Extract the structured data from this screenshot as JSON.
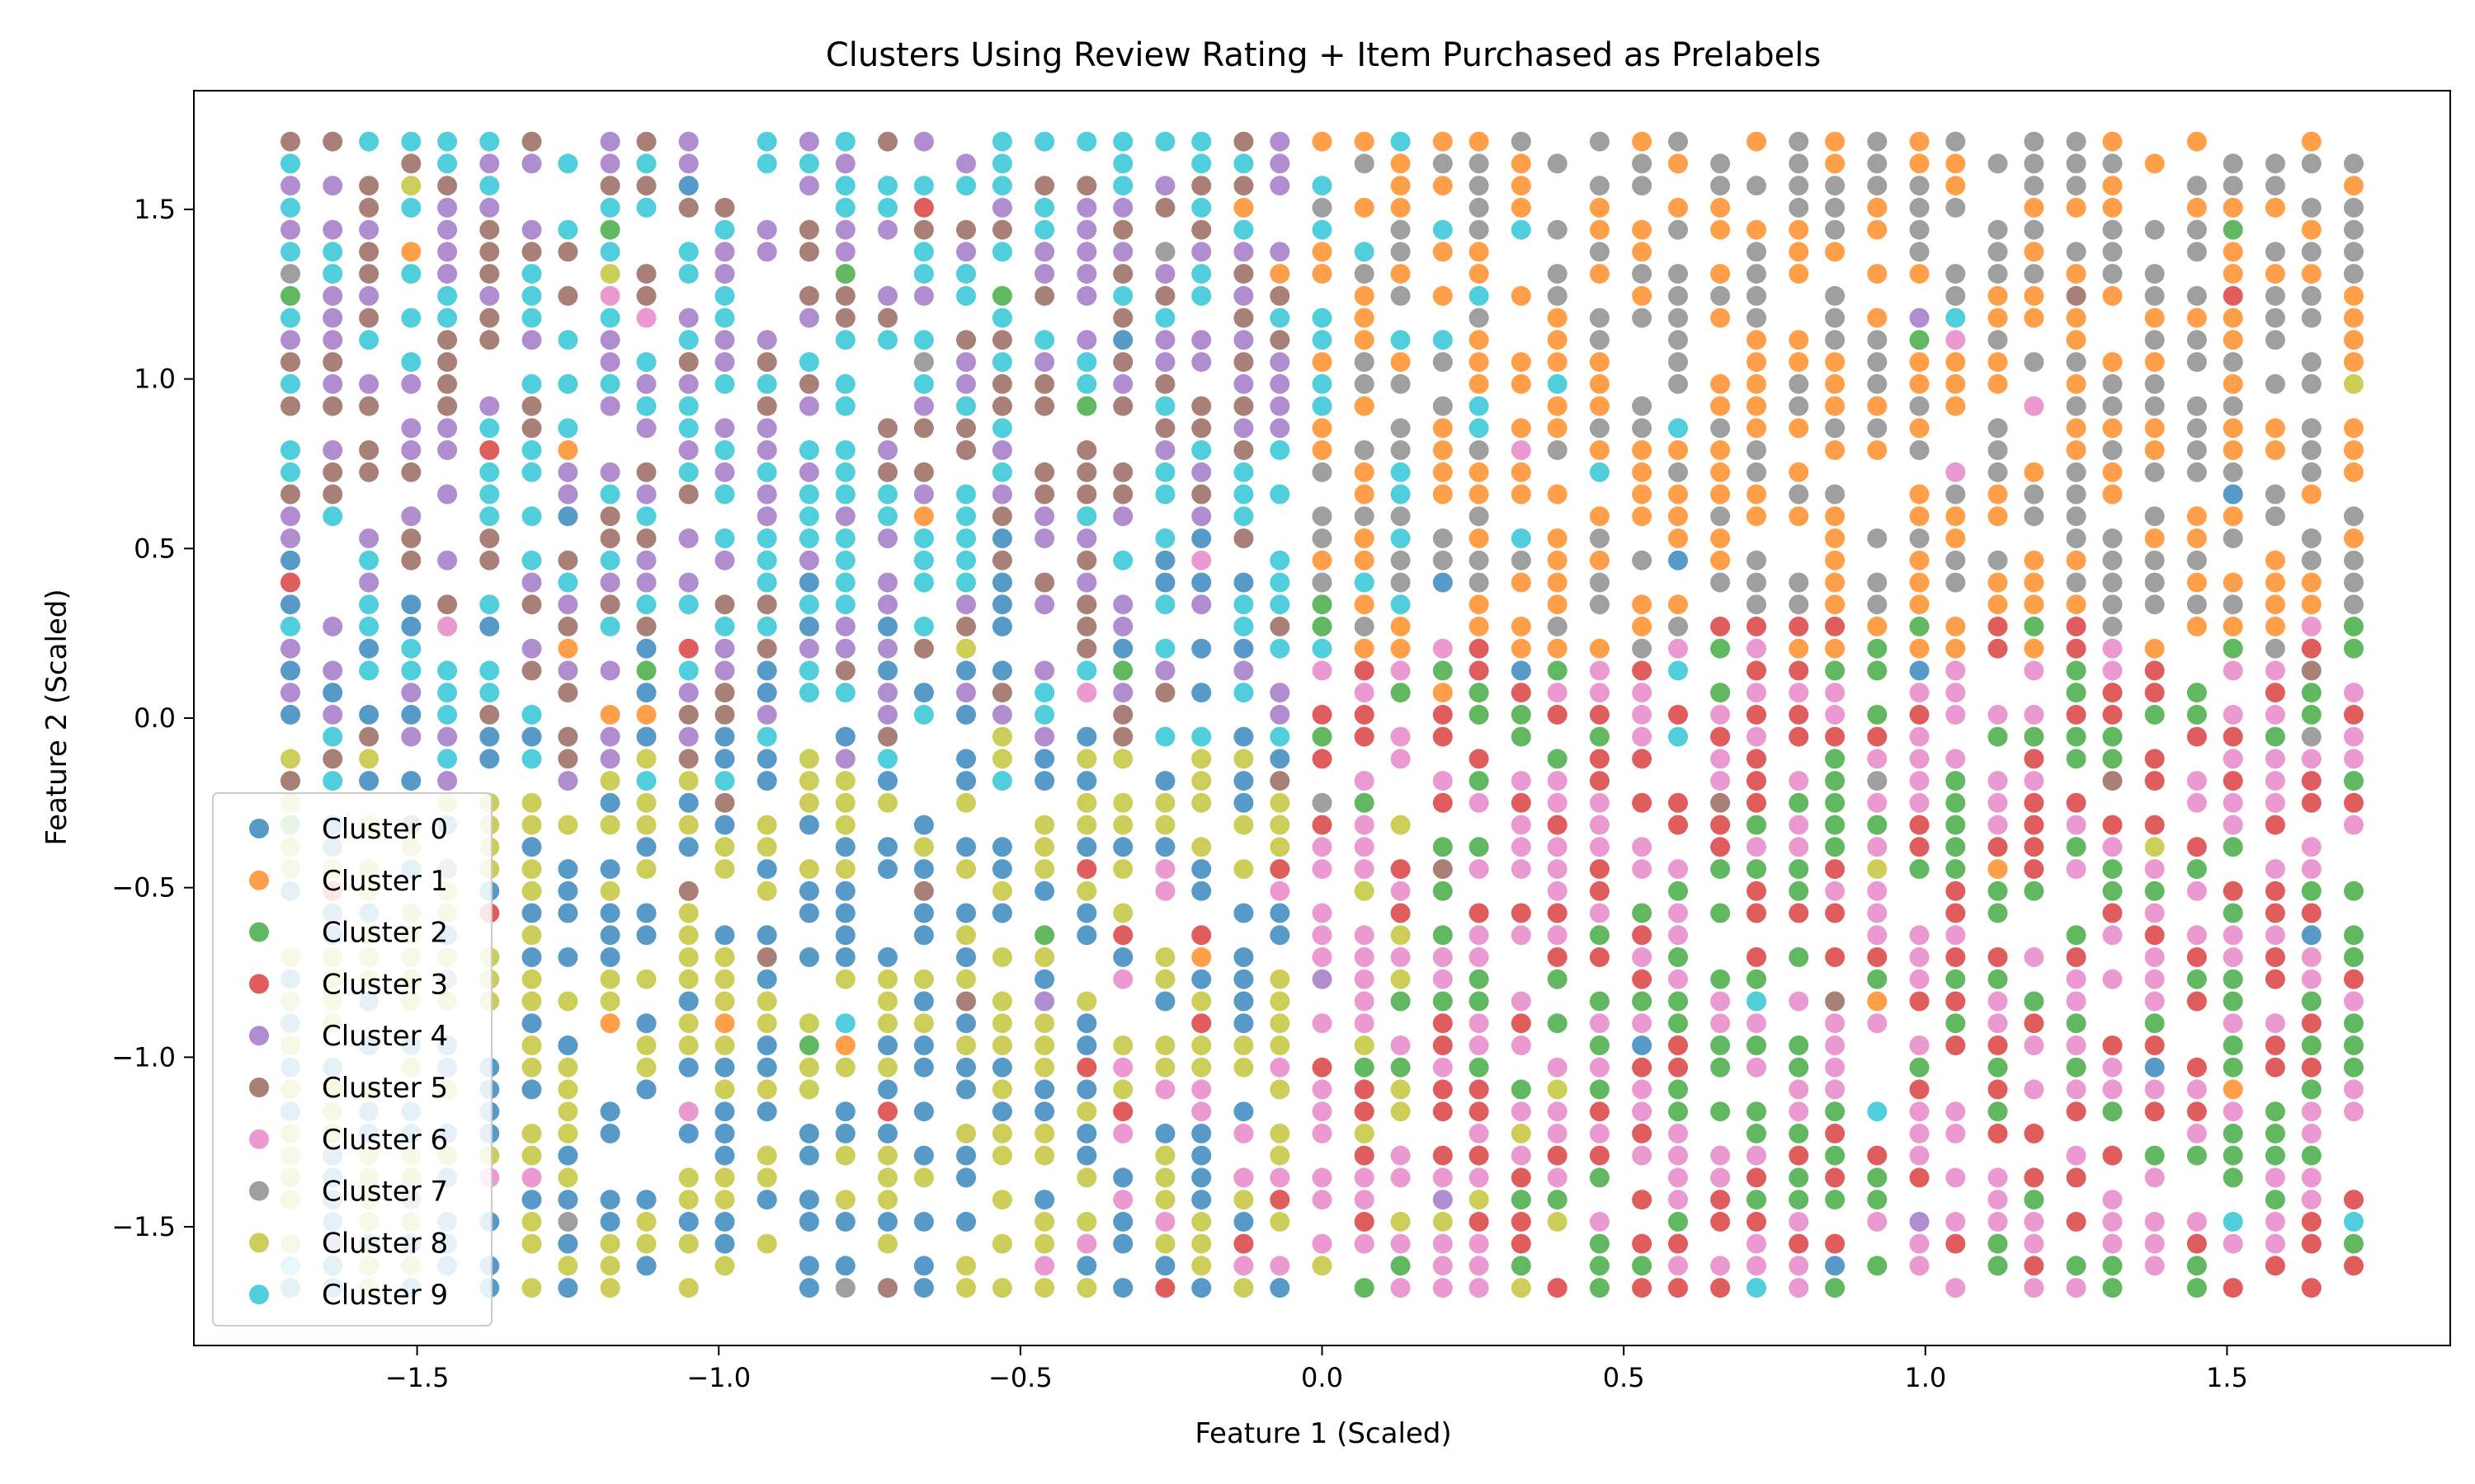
{
  "chart_data": {
    "type": "scatter",
    "title": "Clusters Using Review Rating + Item Purchased as Prelabels",
    "xlabel": "Feature 1 (Scaled)",
    "ylabel": "Feature 2 (Scaled)",
    "xlim": [
      -1.87,
      1.87
    ],
    "ylim": [
      -1.85,
      1.85
    ],
    "xticks": [
      -1.5,
      -1.0,
      -0.5,
      0.0,
      0.5,
      1.0,
      1.5
    ],
    "yticks": [
      -1.5,
      -1.0,
      -0.5,
      0.0,
      0.5,
      1.0,
      1.5
    ],
    "xtick_labels": [
      "−1.5",
      "−1.0",
      "−0.5",
      "0.0",
      "0.5",
      "1.0",
      "1.5"
    ],
    "ytick_labels": [
      "−1.5",
      "−1.0",
      "−0.5",
      "0.0",
      "0.5",
      "1.0",
      "1.5"
    ],
    "grid": false,
    "legend_position": "lower-left",
    "x_columns": [
      -1.71,
      -1.64,
      -1.58,
      -1.51,
      -1.45,
      -1.38,
      -1.31,
      -1.25,
      -1.18,
      -1.12,
      -1.05,
      -0.99,
      -0.92,
      -0.85,
      -0.79,
      -0.72,
      -0.66,
      -0.59,
      -0.53,
      -0.46,
      -0.39,
      -0.33,
      -0.26,
      -0.2,
      -0.13,
      -0.07,
      0.0,
      0.07,
      0.13,
      0.2,
      0.26,
      0.33,
      0.39,
      0.46,
      0.53,
      0.59,
      0.66,
      0.72,
      0.79,
      0.85,
      0.92,
      0.99,
      1.05,
      1.12,
      1.18,
      1.25,
      1.31,
      1.38,
      1.45,
      1.51,
      1.58,
      1.64,
      1.71
    ],
    "y_range": [
      -1.68,
      1.7
    ],
    "series": [
      {
        "name": "Cluster 0",
        "color": "#1f77b4",
        "x_range": [
          -1.71,
          0.0
        ],
        "y_range": [
          -1.68,
          0.5
        ]
      },
      {
        "name": "Cluster 1",
        "color": "#ff7f0e",
        "x_range": [
          0.0,
          1.71
        ],
        "y_range": [
          -0.6,
          1.7
        ]
      },
      {
        "name": "Cluster 2",
        "color": "#2ca02c",
        "x_range": [
          0.0,
          1.71
        ],
        "y_range": [
          -1.68,
          0.1
        ]
      },
      {
        "name": "Cluster 3",
        "color": "#d62728",
        "x_range": [
          -0.4,
          1.71
        ],
        "y_range": [
          -1.68,
          0.4
        ]
      },
      {
        "name": "Cluster 4",
        "color": "#9467bd",
        "x_range": [
          -1.71,
          0.3
        ],
        "y_range": [
          -0.1,
          1.7
        ]
      },
      {
        "name": "Cluster 5",
        "color": "#8c564b",
        "x_range": [
          -1.71,
          0.0
        ],
        "y_range": [
          0.2,
          1.7
        ]
      },
      {
        "name": "Cluster 6",
        "color": "#e377c2",
        "x_range": [
          -0.3,
          1.71
        ],
        "y_range": [
          -1.68,
          0.5
        ]
      },
      {
        "name": "Cluster 7",
        "color": "#7f7f7f",
        "x_range": [
          0.1,
          1.71
        ],
        "y_range": [
          0.0,
          1.7
        ]
      },
      {
        "name": "Cluster 8",
        "color": "#bcbd22",
        "x_range": [
          -1.71,
          0.3
        ],
        "y_range": [
          -1.68,
          -0.1
        ]
      },
      {
        "name": "Cluster 9",
        "color": "#17becf",
        "x_range": [
          -1.71,
          0.3
        ],
        "y_range": [
          -0.5,
          1.7
        ]
      }
    ]
  }
}
